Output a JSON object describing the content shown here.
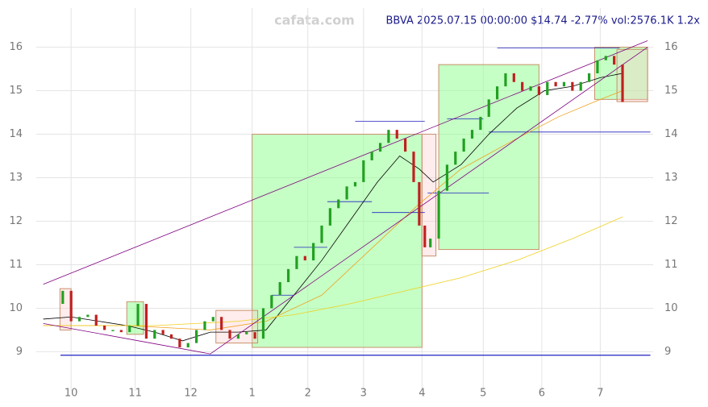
{
  "chart_data": {
    "type": "candlestick",
    "title": "BBVA 2025.07.15 00:00:00 $14.74 -2.77% vol:2576.1K 1.2x",
    "watermark": "cafata.com",
    "xlim": [
      -12.5,
      209
    ],
    "ylim": [
      8.1,
      16.9
    ],
    "xticks": [
      {
        "value": 0,
        "label": "10"
      },
      {
        "value": 23,
        "label": "11"
      },
      {
        "value": 43,
        "label": "12"
      },
      {
        "value": 65,
        "label": "1"
      },
      {
        "value": 85,
        "label": "2"
      },
      {
        "value": 105,
        "label": "3"
      },
      {
        "value": 126,
        "label": "4"
      },
      {
        "value": 148,
        "label": "5"
      },
      {
        "value": 169,
        "label": "6"
      },
      {
        "value": 190,
        "label": "7"
      }
    ],
    "yticks": [
      9,
      10,
      11,
      12,
      13,
      14,
      15,
      16
    ],
    "grid": true,
    "up_color": "#22a022",
    "down_color": "#c02020",
    "x": [
      -3,
      0,
      3,
      6,
      9,
      12,
      15,
      18,
      21,
      24,
      27,
      30,
      33,
      36,
      39,
      42,
      45,
      48,
      51,
      54,
      57,
      60,
      63,
      66,
      69,
      72,
      75,
      78,
      81,
      84,
      87,
      90,
      93,
      96,
      99,
      102,
      105,
      108,
      111,
      114,
      117,
      120,
      123,
      125,
      127,
      129,
      132,
      135,
      138,
      141,
      144,
      147,
      150,
      153,
      156,
      159,
      162,
      165,
      168,
      171,
      174,
      177,
      180,
      183,
      186,
      189,
      192,
      195,
      198
    ],
    "open": [
      10.1,
      10.4,
      9.7,
      9.8,
      9.85,
      9.6,
      9.5,
      9.5,
      9.45,
      9.6,
      10.1,
      9.3,
      9.5,
      9.4,
      9.3,
      9.1,
      9.2,
      9.5,
      9.7,
      9.8,
      9.5,
      9.3,
      9.4,
      9.45,
      9.3,
      10.0,
      10.3,
      10.6,
      10.9,
      11.2,
      11.1,
      11.5,
      11.9,
      12.3,
      12.5,
      12.8,
      12.9,
      13.4,
      13.6,
      13.8,
      14.1,
      13.9,
      13.6,
      12.9,
      11.9,
      11.4,
      11.6,
      12.7,
      13.3,
      13.6,
      13.9,
      14.1,
      14.4,
      14.8,
      15.1,
      15.4,
      15.2,
      15.0,
      15.1,
      14.9,
      15.2,
      15.1,
      15.2,
      15.0,
      15.2,
      15.4,
      15.7,
      15.8,
      15.6
    ],
    "close": [
      10.4,
      9.7,
      9.8,
      9.85,
      9.6,
      9.5,
      9.5,
      9.45,
      9.6,
      10.1,
      9.3,
      9.5,
      9.4,
      9.3,
      9.1,
      9.2,
      9.5,
      9.7,
      9.8,
      9.5,
      9.3,
      9.4,
      9.45,
      9.3,
      10.0,
      10.3,
      10.6,
      10.9,
      11.2,
      11.1,
      11.5,
      11.9,
      12.3,
      12.5,
      12.8,
      12.9,
      13.4,
      13.6,
      13.8,
      14.1,
      13.9,
      13.6,
      12.9,
      11.9,
      11.4,
      11.6,
      12.7,
      13.3,
      13.6,
      13.9,
      14.1,
      14.4,
      14.8,
      15.1,
      15.4,
      15.2,
      15.0,
      15.1,
      14.9,
      15.2,
      15.1,
      15.2,
      15.0,
      15.2,
      15.4,
      15.7,
      15.8,
      15.6,
      14.74
    ],
    "lines": [
      {
        "color": "#000000",
        "x": [
          -10,
          0,
          10,
          20,
          30,
          40,
          50,
          60,
          70,
          80,
          90,
          100,
          110,
          118,
          125,
          130,
          140,
          150,
          160,
          170,
          180,
          190,
          198
        ],
        "values": [
          9.75,
          9.8,
          9.7,
          9.6,
          9.45,
          9.25,
          9.45,
          9.45,
          9.5,
          10.3,
          11.1,
          12.0,
          12.9,
          13.5,
          13.2,
          12.9,
          13.3,
          14.0,
          14.6,
          15.0,
          15.1,
          15.3,
          15.4
        ]
      },
      {
        "color": "#f0a020",
        "x": [
          -10,
          20,
          50,
          70,
          90,
          110,
          125,
          140,
          160,
          175,
          190,
          198
        ],
        "values": [
          9.6,
          9.6,
          9.5,
          9.7,
          10.3,
          11.5,
          12.4,
          13.2,
          13.9,
          14.4,
          14.8,
          15.0
        ]
      },
      {
        "color": "#f0d020",
        "x": [
          -10,
          30,
          60,
          80,
          100,
          120,
          140,
          160,
          180,
          198
        ],
        "values": [
          9.6,
          9.6,
          9.7,
          9.85,
          10.1,
          10.4,
          10.7,
          11.1,
          11.6,
          12.1
        ]
      },
      {
        "color": "#800080",
        "x": [
          -10,
          207
        ],
        "values": [
          10.55,
          16.15
        ]
      },
      {
        "color": "#800080",
        "x": [
          -10,
          50,
          207
        ],
        "values": [
          9.65,
          8.95,
          16.0
        ]
      }
    ],
    "green_zones": [
      [
        65,
        126,
        9.1,
        14.0
      ],
      [
        132,
        168,
        11.35,
        15.6
      ],
      [
        188,
        207,
        14.8,
        16.0
      ],
      [
        20,
        26,
        9.4,
        10.15
      ]
    ],
    "pink_zones": [
      [
        -4,
        0,
        9.5,
        10.45
      ],
      [
        126,
        131,
        11.2,
        14.0
      ],
      [
        196,
        207,
        14.75,
        15.95
      ],
      [
        52,
        67,
        9.2,
        9.95
      ]
    ],
    "levels": [
      [
        72,
        80,
        10.3
      ],
      [
        80,
        92,
        11.4
      ],
      [
        92,
        108,
        12.45
      ],
      [
        108,
        127,
        12.2
      ],
      [
        102,
        127,
        14.3
      ],
      [
        128,
        150,
        12.65
      ],
      [
        135,
        148,
        14.35
      ],
      [
        153,
        197,
        15.98
      ],
      [
        150,
        208,
        14.05
      ]
    ]
  }
}
